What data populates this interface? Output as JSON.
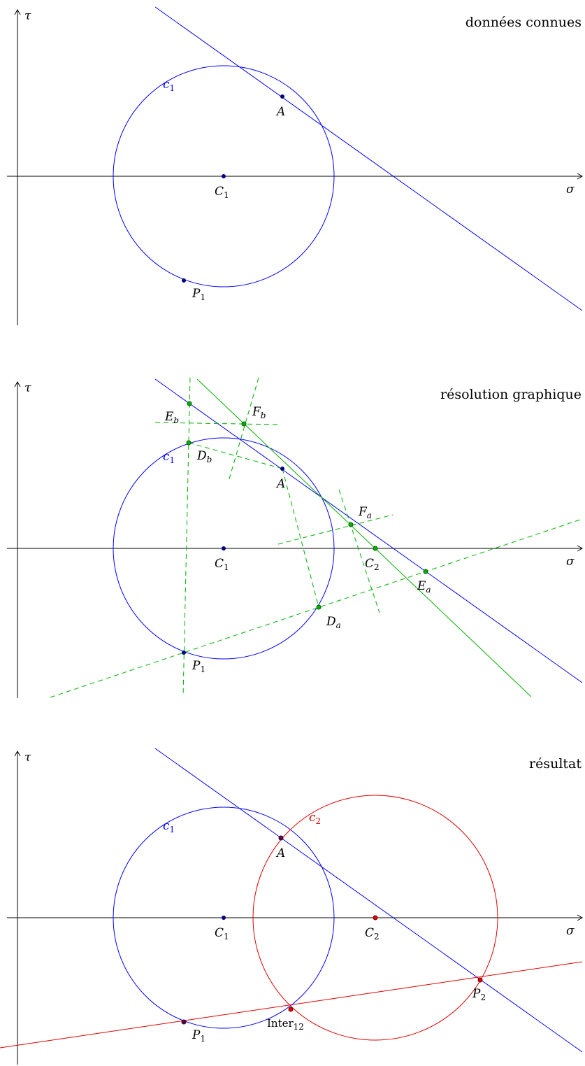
{
  "colors": {
    "axis": "#000000",
    "blue": "#0000ff",
    "green": "#00b000",
    "red": "#e00000",
    "point_dark": "#000080",
    "point_green": "#006400",
    "point_red": "#800000"
  },
  "axes": {
    "x_label": "σ",
    "y_label": "τ"
  },
  "panel1": {
    "title": "données connues",
    "c1": {
      "main": "c",
      "sub": "1"
    },
    "A": {
      "main": "A",
      "sub": ""
    },
    "C1": {
      "main": "C",
      "sub": "1"
    },
    "P1": {
      "main": "P",
      "sub": "1"
    }
  },
  "panel2": {
    "title": "résolution graphique",
    "c1": {
      "main": "c",
      "sub": "1"
    },
    "A": {
      "main": "A",
      "sub": ""
    },
    "C1": {
      "main": "C",
      "sub": "1"
    },
    "C2": {
      "main": "C",
      "sub": "2"
    },
    "P1": {
      "main": "P",
      "sub": "1"
    },
    "Eb": {
      "main": "E",
      "sub": "b"
    },
    "Fb": {
      "main": "F",
      "sub": "b"
    },
    "Db": {
      "main": "D",
      "sub": "b"
    },
    "Fa": {
      "main": "F",
      "sub": "a"
    },
    "Ea": {
      "main": "E",
      "sub": "a"
    },
    "Da": {
      "main": "D",
      "sub": "a"
    }
  },
  "panel3": {
    "title": "résultat",
    "c1": {
      "main": "c",
      "sub": "1"
    },
    "c2": {
      "main": "c",
      "sub": "2"
    },
    "A": {
      "main": "A",
      "sub": ""
    },
    "C1": {
      "main": "C",
      "sub": "1"
    },
    "C2": {
      "main": "C",
      "sub": "2"
    },
    "P1": {
      "main": "P",
      "sub": "1"
    },
    "P2": {
      "main": "P",
      "sub": "2"
    },
    "Inter": {
      "main": "Inter",
      "sub": "12"
    }
  }
}
